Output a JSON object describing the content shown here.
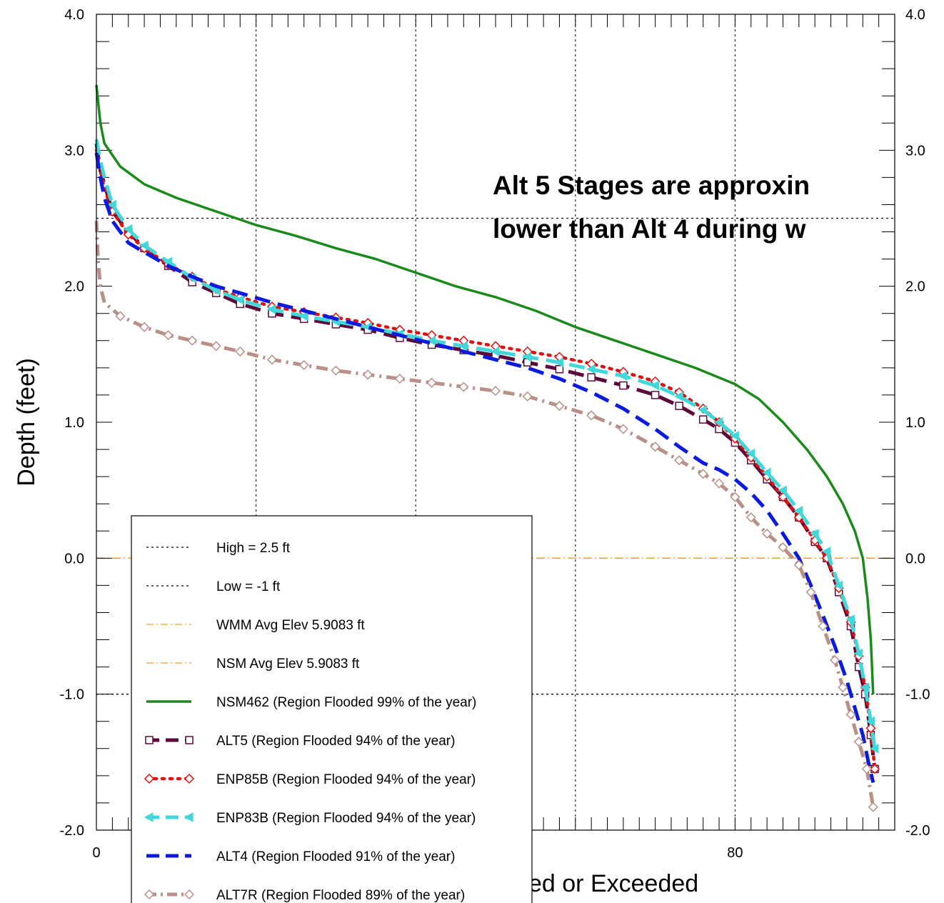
{
  "chart_data": {
    "type": "line",
    "title": "",
    "ylabel": "Depth (feet)",
    "xlabel_visible": "ed or Exceeded",
    "annotation_lines": [
      "Alt 5 Stages are approxin",
      "lower than Alt 4 during w"
    ],
    "xlim": [
      0,
      100
    ],
    "ylim": [
      -2.0,
      4.0
    ],
    "y_ticks": [
      "-2.0",
      "-1.0",
      "0.0",
      "1.0",
      "2.0",
      "3.0",
      "4.0"
    ],
    "y_ticks_right": [
      "-2.0",
      "-1.0",
      "0.0",
      "1.0",
      "2.0",
      "3.0",
      "4.0"
    ],
    "x_ticks_visible": [
      "0",
      "80"
    ],
    "grid_x": [
      20,
      40,
      60,
      80
    ],
    "grid": true,
    "reference_lines": [
      {
        "name": "High = 2.5 ft",
        "y": 2.5,
        "color": "#000000",
        "style": "dotted"
      },
      {
        "name": "Low = -1 ft",
        "y": -1.0,
        "color": "#000000",
        "style": "dotted"
      },
      {
        "name": "WMM Avg Elev 5.9083 ft",
        "y": 0.0,
        "color": "#f0a020",
        "style": "dashdot"
      },
      {
        "name": "NSM Avg Elev 5.9083 ft",
        "y": 0.0,
        "color": "#f0a020",
        "style": "dashdot"
      }
    ],
    "series": [
      {
        "name": "NSM462 (Region Flooded 99% of the year)",
        "color": "#1a8a1a",
        "style": "solid",
        "marker": "none",
        "points": [
          [
            0,
            3.48
          ],
          [
            0.5,
            3.2
          ],
          [
            1,
            3.05
          ],
          [
            3,
            2.88
          ],
          [
            6,
            2.75
          ],
          [
            10,
            2.65
          ],
          [
            15,
            2.55
          ],
          [
            20,
            2.45
          ],
          [
            25,
            2.37
          ],
          [
            30,
            2.28
          ],
          [
            35,
            2.2
          ],
          [
            40,
            2.1
          ],
          [
            45,
            2.0
          ],
          [
            50,
            1.92
          ],
          [
            55,
            1.82
          ],
          [
            60,
            1.7
          ],
          [
            65,
            1.6
          ],
          [
            70,
            1.5
          ],
          [
            75,
            1.4
          ],
          [
            80,
            1.28
          ],
          [
            83,
            1.17
          ],
          [
            86,
            1.0
          ],
          [
            89,
            0.8
          ],
          [
            91.5,
            0.6
          ],
          [
            93.5,
            0.4
          ],
          [
            95,
            0.2
          ],
          [
            96,
            0.0
          ],
          [
            96.6,
            -0.3
          ],
          [
            97,
            -0.6
          ],
          [
            97.3,
            -1.0
          ]
        ]
      },
      {
        "name": "ALT5 (Region Flooded 94% of the year)",
        "color": "#5c0a3a",
        "style": "dash",
        "marker": "square",
        "points": [
          [
            0,
            3.05
          ],
          [
            0.5,
            2.85
          ],
          [
            1,
            2.75
          ],
          [
            2,
            2.55
          ],
          [
            4,
            2.4
          ],
          [
            6,
            2.28
          ],
          [
            9,
            2.15
          ],
          [
            12,
            2.03
          ],
          [
            15,
            1.95
          ],
          [
            18,
            1.87
          ],
          [
            22,
            1.8
          ],
          [
            26,
            1.76
          ],
          [
            30,
            1.72
          ],
          [
            34,
            1.68
          ],
          [
            38,
            1.62
          ],
          [
            42,
            1.57
          ],
          [
            46,
            1.53
          ],
          [
            50,
            1.49
          ],
          [
            54,
            1.44
          ],
          [
            58,
            1.39
          ],
          [
            62,
            1.33
          ],
          [
            66,
            1.27
          ],
          [
            70,
            1.2
          ],
          [
            73,
            1.12
          ],
          [
            76,
            1.02
          ],
          [
            78,
            0.95
          ],
          [
            80,
            0.85
          ],
          [
            82,
            0.72
          ],
          [
            84,
            0.58
          ],
          [
            86,
            0.45
          ],
          [
            88,
            0.3
          ],
          [
            90,
            0.12
          ],
          [
            91.5,
            0.0
          ],
          [
            93,
            -0.25
          ],
          [
            94.5,
            -0.5
          ],
          [
            95.5,
            -0.8
          ],
          [
            96.3,
            -1.0
          ],
          [
            97,
            -1.3
          ],
          [
            97.5,
            -1.55
          ]
        ]
      },
      {
        "name": "ENP85B (Region Flooded 94% of the year)",
        "color": "#e01010",
        "style": "dotted",
        "marker": "diamond",
        "points": [
          [
            0,
            3.0
          ],
          [
            0.5,
            2.85
          ],
          [
            1,
            2.72
          ],
          [
            2,
            2.55
          ],
          [
            4,
            2.38
          ],
          [
            6,
            2.28
          ],
          [
            9,
            2.16
          ],
          [
            12,
            2.07
          ],
          [
            15,
            1.98
          ],
          [
            18,
            1.92
          ],
          [
            22,
            1.85
          ],
          [
            26,
            1.81
          ],
          [
            30,
            1.77
          ],
          [
            34,
            1.73
          ],
          [
            38,
            1.68
          ],
          [
            42,
            1.64
          ],
          [
            46,
            1.6
          ],
          [
            50,
            1.56
          ],
          [
            54,
            1.52
          ],
          [
            58,
            1.48
          ],
          [
            62,
            1.43
          ],
          [
            66,
            1.37
          ],
          [
            70,
            1.3
          ],
          [
            73,
            1.22
          ],
          [
            76,
            1.1
          ],
          [
            78,
            1.0
          ],
          [
            80,
            0.88
          ],
          [
            82,
            0.74
          ],
          [
            84,
            0.6
          ],
          [
            86,
            0.45
          ],
          [
            88,
            0.3
          ],
          [
            90,
            0.13
          ],
          [
            91.5,
            0.0
          ],
          [
            93,
            -0.22
          ],
          [
            94.5,
            -0.47
          ],
          [
            95.5,
            -0.72
          ],
          [
            96.3,
            -0.95
          ],
          [
            97,
            -1.25
          ],
          [
            97.5,
            -1.55
          ]
        ]
      },
      {
        "name": "ENP83B (Region Flooded 94% of the year)",
        "color": "#40d8d8",
        "style": "dash",
        "marker": "triangle",
        "points": [
          [
            0,
            3.08
          ],
          [
            0.5,
            2.92
          ],
          [
            1,
            2.8
          ],
          [
            2,
            2.6
          ],
          [
            4,
            2.42
          ],
          [
            6,
            2.3
          ],
          [
            9,
            2.18
          ],
          [
            12,
            2.06
          ],
          [
            15,
            1.97
          ],
          [
            18,
            1.9
          ],
          [
            22,
            1.83
          ],
          [
            26,
            1.78
          ],
          [
            30,
            1.74
          ],
          [
            34,
            1.7
          ],
          [
            38,
            1.65
          ],
          [
            42,
            1.6
          ],
          [
            46,
            1.56
          ],
          [
            50,
            1.52
          ],
          [
            54,
            1.48
          ],
          [
            58,
            1.44
          ],
          [
            62,
            1.39
          ],
          [
            66,
            1.34
          ],
          [
            70,
            1.27
          ],
          [
            73,
            1.19
          ],
          [
            76,
            1.09
          ],
          [
            78,
            1.0
          ],
          [
            80,
            0.9
          ],
          [
            82,
            0.77
          ],
          [
            84,
            0.63
          ],
          [
            86,
            0.5
          ],
          [
            88,
            0.35
          ],
          [
            90,
            0.18
          ],
          [
            91.5,
            0.05
          ],
          [
            93,
            -0.2
          ],
          [
            94.5,
            -0.45
          ],
          [
            95.5,
            -0.7
          ],
          [
            96.3,
            -0.95
          ],
          [
            97,
            -1.2
          ],
          [
            97.5,
            -1.4
          ]
        ]
      },
      {
        "name": "ALT4 (Region Flooded 91% of the year)",
        "color": "#0a1ae0",
        "style": "dash",
        "marker": "none",
        "points": [
          [
            0,
            2.98
          ],
          [
            0.5,
            2.8
          ],
          [
            1,
            2.65
          ],
          [
            2,
            2.48
          ],
          [
            4,
            2.32
          ],
          [
            6,
            2.25
          ],
          [
            9,
            2.15
          ],
          [
            12,
            2.07
          ],
          [
            15,
            2.0
          ],
          [
            18,
            1.95
          ],
          [
            22,
            1.88
          ],
          [
            26,
            1.82
          ],
          [
            30,
            1.76
          ],
          [
            34,
            1.7
          ],
          [
            38,
            1.64
          ],
          [
            42,
            1.58
          ],
          [
            46,
            1.52
          ],
          [
            50,
            1.46
          ],
          [
            54,
            1.4
          ],
          [
            58,
            1.32
          ],
          [
            62,
            1.22
          ],
          [
            66,
            1.1
          ],
          [
            70,
            0.95
          ],
          [
            73,
            0.82
          ],
          [
            76,
            0.7
          ],
          [
            78,
            0.65
          ],
          [
            80,
            0.58
          ],
          [
            82,
            0.48
          ],
          [
            84,
            0.35
          ],
          [
            86,
            0.18
          ],
          [
            88,
            0.0
          ],
          [
            89.5,
            -0.2
          ],
          [
            91,
            -0.42
          ],
          [
            92.5,
            -0.65
          ],
          [
            94,
            -0.9
          ],
          [
            95,
            -1.1
          ],
          [
            96,
            -1.3
          ],
          [
            96.7,
            -1.5
          ],
          [
            97.3,
            -1.65
          ]
        ]
      },
      {
        "name": "ALT7R (Region Flooded 89% of the year)",
        "color": "#b89088",
        "style": "dashdot",
        "marker": "diamond",
        "points": [
          [
            0,
            2.48
          ],
          [
            0.2,
            2.2
          ],
          [
            0.5,
            2.0
          ],
          [
            1,
            1.88
          ],
          [
            3,
            1.78
          ],
          [
            6,
            1.7
          ],
          [
            9,
            1.64
          ],
          [
            12,
            1.6
          ],
          [
            15,
            1.56
          ],
          [
            18,
            1.52
          ],
          [
            22,
            1.46
          ],
          [
            26,
            1.42
          ],
          [
            30,
            1.38
          ],
          [
            34,
            1.35
          ],
          [
            38,
            1.32
          ],
          [
            42,
            1.29
          ],
          [
            46,
            1.26
          ],
          [
            50,
            1.23
          ],
          [
            54,
            1.19
          ],
          [
            58,
            1.12
          ],
          [
            62,
            1.05
          ],
          [
            66,
            0.95
          ],
          [
            70,
            0.82
          ],
          [
            73,
            0.72
          ],
          [
            76,
            0.62
          ],
          [
            78,
            0.55
          ],
          [
            80,
            0.45
          ],
          [
            82,
            0.3
          ],
          [
            84,
            0.18
          ],
          [
            86,
            0.08
          ],
          [
            88,
            -0.05
          ],
          [
            89.5,
            -0.25
          ],
          [
            91,
            -0.5
          ],
          [
            92.5,
            -0.75
          ],
          [
            93.5,
            -0.95
          ],
          [
            94.5,
            -1.15
          ],
          [
            95.5,
            -1.35
          ],
          [
            96.5,
            -1.55
          ],
          [
            97.3,
            -1.83
          ]
        ]
      }
    ],
    "legend_position": "lower-left"
  }
}
